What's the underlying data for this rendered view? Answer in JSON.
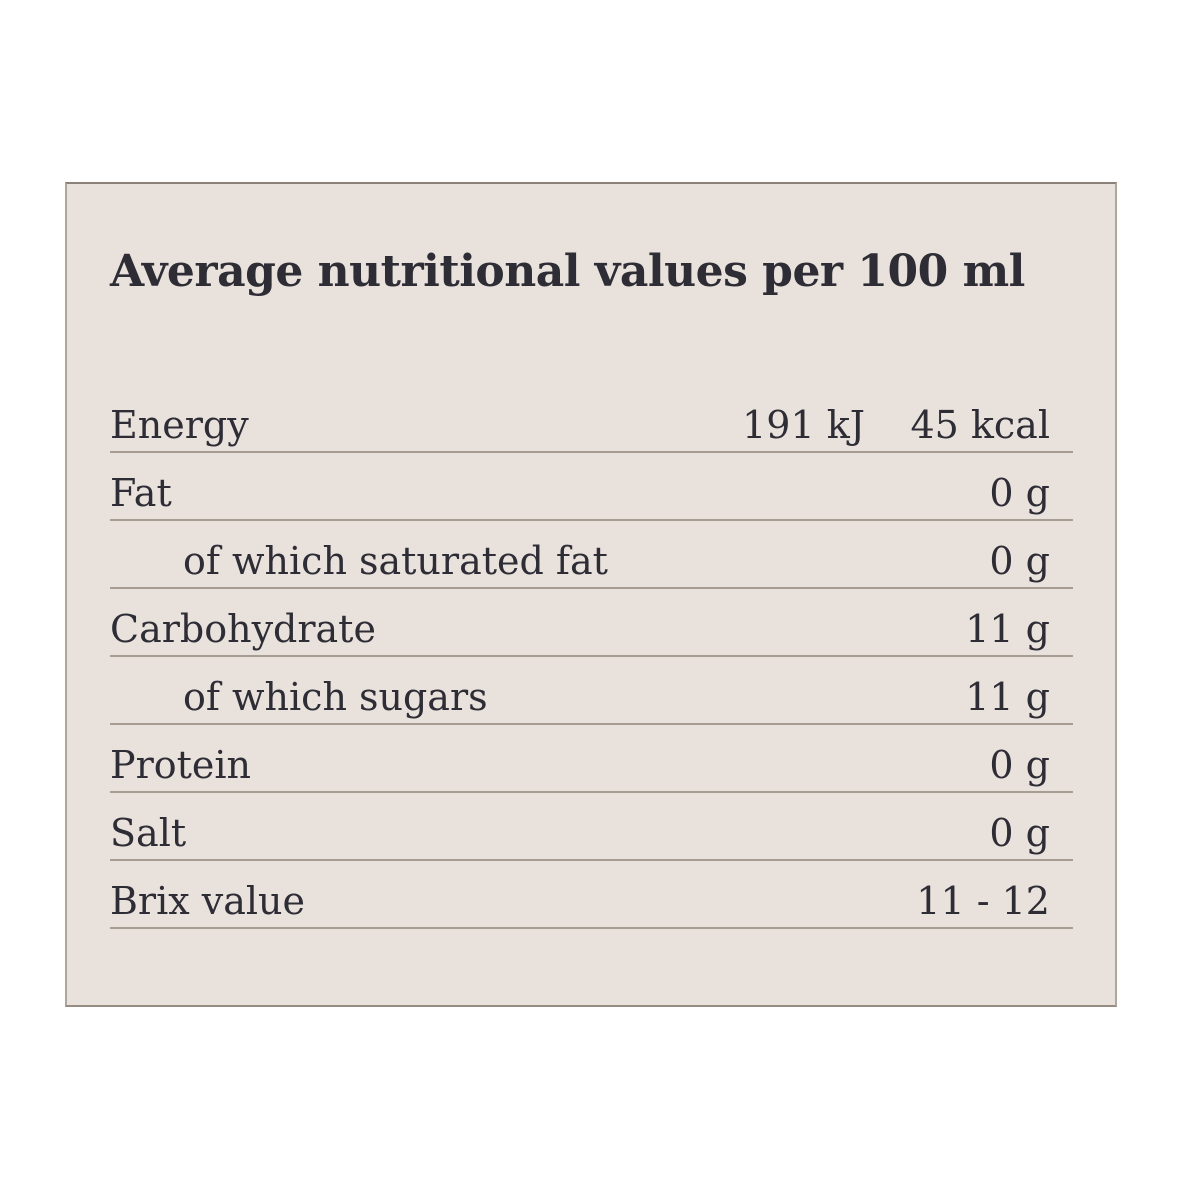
{
  "panel": {
    "title": "Average nutritional values per 100 ml",
    "colors": {
      "panel_background": "#e9e2dc",
      "panel_border": "#b0a59b",
      "row_line": "#a89d92",
      "text": "#2e2d36",
      "page_background": "#ffffff"
    }
  },
  "table": {
    "rows": [
      {
        "label": "Energy",
        "value_kj": "191 kJ",
        "value": "45 kcal"
      },
      {
        "label": "Fat",
        "value": "0 g"
      },
      {
        "label": "of which saturated fat",
        "value": "0 g"
      },
      {
        "label": "Carbohydrate",
        "value": "11 g"
      },
      {
        "label": "of which sugars",
        "value": "11 g"
      },
      {
        "label": "Protein",
        "value": "0 g"
      },
      {
        "label": "Salt",
        "value": "0 g"
      },
      {
        "label": "Brix value",
        "value": "11 - 12"
      }
    ]
  }
}
